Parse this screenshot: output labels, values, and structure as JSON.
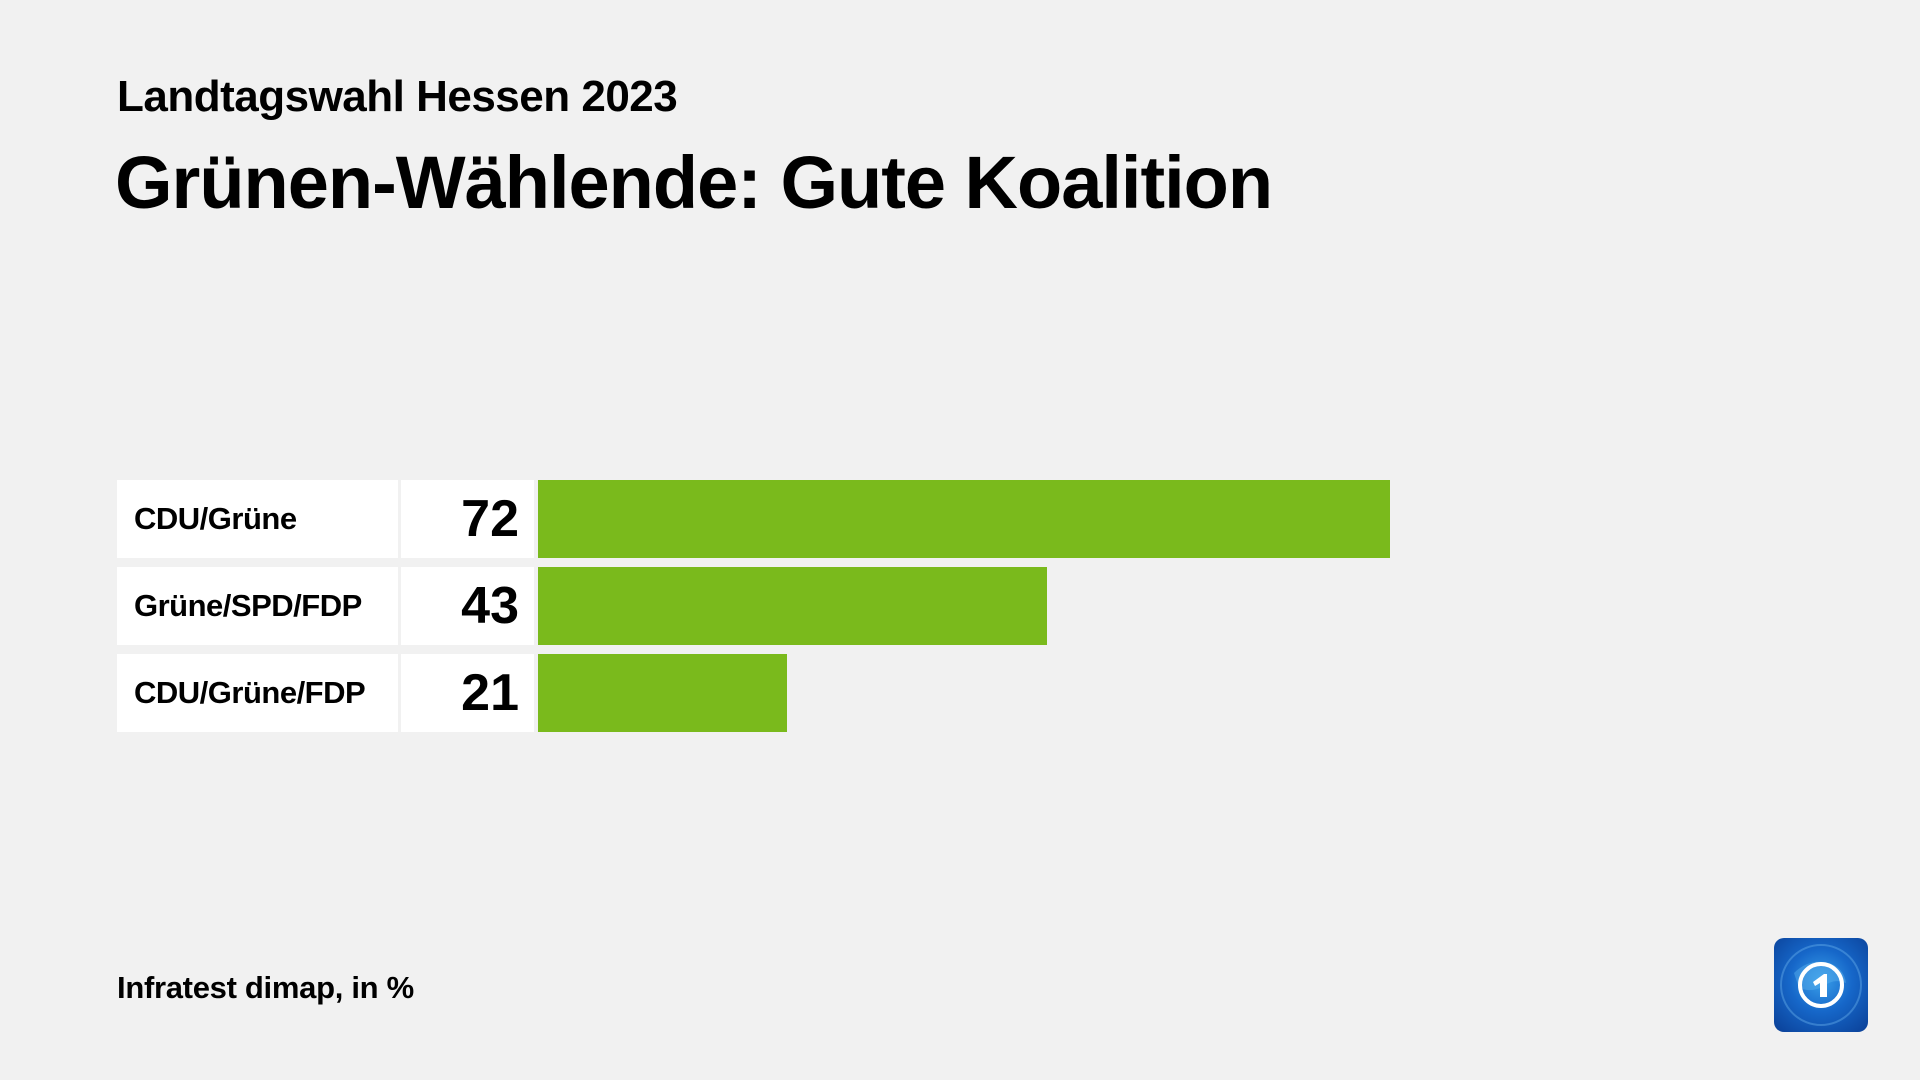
{
  "header": {
    "subtitle": "Landtagswahl Hessen 2023",
    "title": "Grünen-Wählende: Gute Koalition"
  },
  "footer": {
    "source": "Infratest dimap, in %"
  },
  "logo": {
    "icon": "tagesschau-globe-1-icon"
  },
  "colors": {
    "bar": "#7aba1c",
    "background": "#f1f1f1",
    "cell": "#ffffff"
  },
  "rows": [
    {
      "label": "CDU/Grüne",
      "value": "72"
    },
    {
      "label": "Grüne/SPD/FDP",
      "value": "43"
    },
    {
      "label": "CDU/Grüne/FDP",
      "value": "21"
    }
  ],
  "chart_data": {
    "type": "bar",
    "orientation": "horizontal",
    "title": "Grünen-Wählende: Gute Koalition",
    "subtitle": "Landtagswahl Hessen 2023",
    "categories": [
      "CDU/Grüne",
      "Grüne/SPD/FDP",
      "CDU/Grüne/FDP"
    ],
    "values": [
      72,
      43,
      21
    ],
    "xlabel": "",
    "ylabel": "",
    "unit": "%",
    "source": "Infratest dimap, in %",
    "grid": false,
    "legend": null
  }
}
